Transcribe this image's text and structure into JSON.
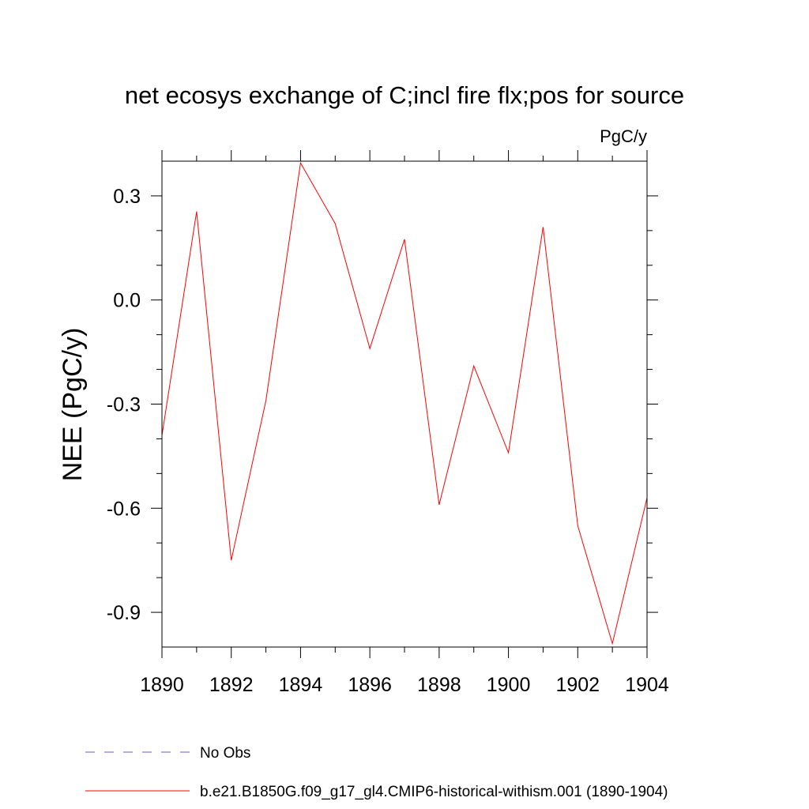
{
  "chart_data": {
    "type": "line",
    "title": "net ecosys exchange of C;incl fire flx;pos for source",
    "units": "PgC/y",
    "ylabel": "NEE  (PgC/y)",
    "xlabel": "",
    "xlim": [
      1890,
      1904
    ],
    "ylim": [
      -1.0,
      0.4
    ],
    "x_ticks": [
      1890,
      1892,
      1894,
      1896,
      1898,
      1900,
      1902,
      1904
    ],
    "x_tick_labels": [
      "1890",
      "1892",
      "1894",
      "1896",
      "1898",
      "1900",
      "1902",
      "1904"
    ],
    "y_ticks": [
      0.3,
      0.0,
      -0.3,
      -0.6,
      -0.9
    ],
    "y_tick_labels": [
      "0.3",
      "0.0",
      "-0.3",
      "-0.6",
      "-0.9"
    ],
    "grid": false,
    "legend_position": "bottom-left",
    "series": [
      {
        "name": "b.e21.B1850G.f09_g17_gl4.CMIP6-historical-withism.001 (1890-1904)",
        "color": "#ff0000",
        "dash": "solid",
        "x": [
          1890,
          1891,
          1892,
          1893,
          1894,
          1895,
          1896,
          1897,
          1898,
          1899,
          1900,
          1901,
          1902,
          1903,
          1904
        ],
        "y": [
          -0.39,
          0.255,
          -0.75,
          -0.29,
          0.395,
          0.22,
          -0.14,
          0.175,
          -0.59,
          -0.19,
          -0.44,
          0.21,
          -0.65,
          -0.99,
          -0.57
        ]
      },
      {
        "name": "No Obs",
        "color": "#6a5acd",
        "dash": "dashed",
        "x": [],
        "y": []
      }
    ]
  }
}
